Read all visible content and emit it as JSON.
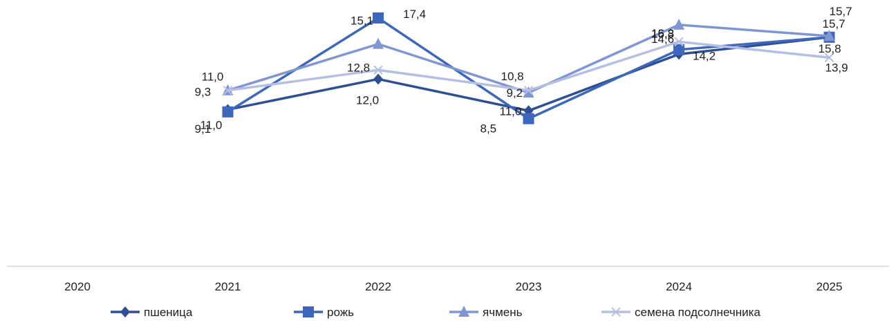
{
  "chart_data": {
    "type": "line",
    "categories": [
      "2020",
      "2021",
      "2022",
      "2023",
      "2024",
      "2025"
    ],
    "ylim": [
      6,
      19
    ],
    "grid": false,
    "legend_position": "bottom",
    "series": [
      {
        "name": "пшеница",
        "color": "#2e4f94",
        "marker": "diamond",
        "values": [
          null,
          9.3,
          12.0,
          9.2,
          14.2,
          15.7
        ],
        "labels": [
          "",
          "9,3",
          "12,0",
          "9,2",
          "14,2",
          "15,7"
        ]
      },
      {
        "name": "рожь",
        "color": "#3c67bd",
        "marker": "square",
        "values": [
          null,
          9.1,
          17.4,
          8.5,
          14.6,
          15.7
        ],
        "labels": [
          "",
          "9,1",
          "17,4",
          "8,5",
          "14,6",
          "15,7"
        ]
      },
      {
        "name": "ячмень",
        "color": "#7f96d5",
        "marker": "triangle",
        "values": [
          null,
          11.0,
          15.1,
          10.8,
          16.8,
          15.8
        ],
        "labels": [
          "",
          "11,0",
          "15,1",
          "10,8",
          "16,8",
          "15,8"
        ]
      },
      {
        "name": "семена подсолнечника",
        "color": "#b4c0e3",
        "marker": "x",
        "values": [
          null,
          11.0,
          12.8,
          11.0,
          15.3,
          13.9
        ],
        "labels": [
          "",
          "11,0",
          "12,8",
          "11,0",
          "15,3",
          "13,9"
        ]
      }
    ]
  }
}
